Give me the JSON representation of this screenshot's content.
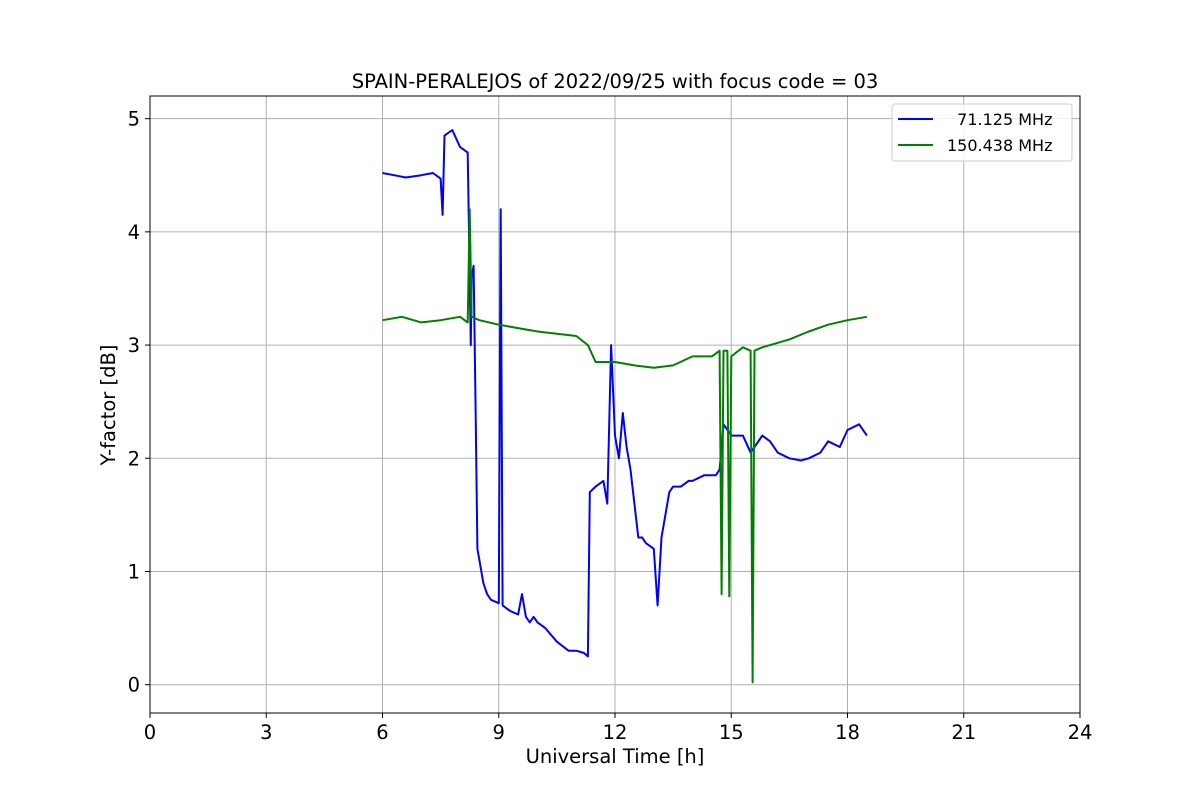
{
  "chart_data": {
    "type": "line",
    "title": "SPAIN-PERALEJOS of 2022/09/25 with focus code = 03",
    "xlabel": "Universal Time [h]",
    "ylabel": "Y-factor [dB]",
    "xlim": [
      0,
      24
    ],
    "ylim": [
      -0.25,
      5.2
    ],
    "xticks": [
      0,
      3,
      6,
      9,
      12,
      15,
      18,
      21,
      24
    ],
    "yticks": [
      0,
      1,
      2,
      3,
      4,
      5
    ],
    "grid": true,
    "legend_position": "top-right",
    "series": [
      {
        "name": "  71.125 MHz",
        "color": "#0000ff",
        "x": [
          6.0,
          6.3,
          6.6,
          7.0,
          7.3,
          7.5,
          7.55,
          7.6,
          7.8,
          8.0,
          8.2,
          8.28,
          8.3,
          8.35,
          8.4,
          8.45,
          8.5,
          8.6,
          8.7,
          8.8,
          9.0,
          9.05,
          9.1,
          9.3,
          9.5,
          9.6,
          9.7,
          9.8,
          9.9,
          10.0,
          10.2,
          10.5,
          10.8,
          11.0,
          11.2,
          11.3,
          11.35,
          11.5,
          11.7,
          11.8,
          11.9,
          12.0,
          12.1,
          12.2,
          12.3,
          12.4,
          12.5,
          12.6,
          12.7,
          12.8,
          13.0,
          13.1,
          13.2,
          13.4,
          13.5,
          13.7,
          13.9,
          14.0,
          14.3,
          14.6,
          14.7,
          14.8,
          15.0,
          15.3,
          15.5,
          15.6,
          15.8,
          16.0,
          16.2,
          16.5,
          16.8,
          17.0,
          17.3,
          17.5,
          17.8,
          18.0,
          18.3,
          18.5
        ],
        "values": [
          4.52,
          4.5,
          4.48,
          4.5,
          4.52,
          4.47,
          4.15,
          4.85,
          4.9,
          4.75,
          4.7,
          3.0,
          3.6,
          3.7,
          2.5,
          1.2,
          1.1,
          0.9,
          0.8,
          0.75,
          0.72,
          4.2,
          0.7,
          0.65,
          0.62,
          0.8,
          0.6,
          0.55,
          0.6,
          0.55,
          0.5,
          0.38,
          0.3,
          0.3,
          0.28,
          0.25,
          1.7,
          1.75,
          1.8,
          1.6,
          3.0,
          2.2,
          2.0,
          2.4,
          2.1,
          1.9,
          1.6,
          1.3,
          1.3,
          1.25,
          1.2,
          0.7,
          1.3,
          1.7,
          1.75,
          1.75,
          1.8,
          1.8,
          1.85,
          1.85,
          1.9,
          2.3,
          2.2,
          2.2,
          2.05,
          2.1,
          2.2,
          2.15,
          2.05,
          2.0,
          1.98,
          2.0,
          2.05,
          2.15,
          2.1,
          2.25,
          2.3,
          2.2
        ]
      },
      {
        "name": "150.438 MHz",
        "color": "#008000",
        "x": [
          6.0,
          6.5,
          7.0,
          7.5,
          8.0,
          8.2,
          8.25,
          8.3,
          8.5,
          9.0,
          9.5,
          10.0,
          10.5,
          11.0,
          11.3,
          11.5,
          12.0,
          12.5,
          13.0,
          13.5,
          14.0,
          14.5,
          14.7,
          14.75,
          14.8,
          14.9,
          14.95,
          15.0,
          15.3,
          15.5,
          15.55,
          15.6,
          15.8,
          16.0,
          16.5,
          17.0,
          17.5,
          18.0,
          18.5
        ],
        "values": [
          3.22,
          3.25,
          3.2,
          3.22,
          3.25,
          3.2,
          4.2,
          3.25,
          3.22,
          3.18,
          3.15,
          3.12,
          3.1,
          3.08,
          3.0,
          2.85,
          2.85,
          2.82,
          2.8,
          2.82,
          2.9,
          2.9,
          2.95,
          0.8,
          2.95,
          2.95,
          0.78,
          2.9,
          2.98,
          2.95,
          0.02,
          2.95,
          2.98,
          3.0,
          3.05,
          3.12,
          3.18,
          3.22,
          3.25
        ]
      }
    ]
  }
}
